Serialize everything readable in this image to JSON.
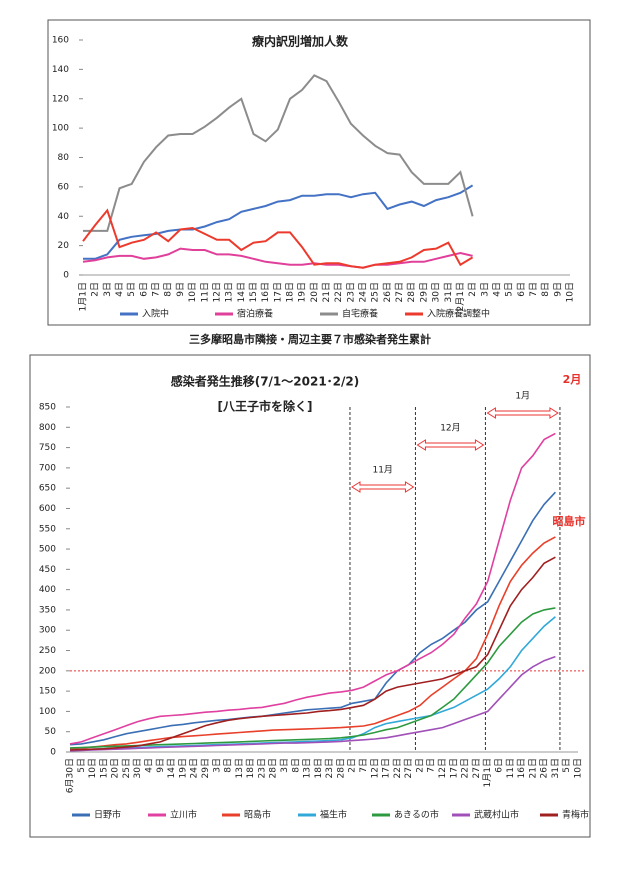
{
  "caption": "三多摩昭島市隣接・周辺主要７市感染者発生累計",
  "chart_data": [
    {
      "type": "line",
      "title": "療内訳別増加人数",
      "categories": [
        "1月1日",
        "2日",
        "3日",
        "4日",
        "5日",
        "6日",
        "7日",
        "8日",
        "9日",
        "10日",
        "11日",
        "12日",
        "13日",
        "14日",
        "15日",
        "16日",
        "17日",
        "18日",
        "19日",
        "20日",
        "21日",
        "22日",
        "23日",
        "24日",
        "25日",
        "26日",
        "27日",
        "28日",
        "29日",
        "30日",
        "31日",
        "2月1日",
        "2日",
        "3日",
        "4日",
        "5日",
        "6日",
        "7日",
        "8日",
        "9日",
        "10日"
      ],
      "ylim": [
        0,
        160
      ],
      "yticks": [
        0,
        20,
        40,
        60,
        80,
        100,
        120,
        140,
        160
      ],
      "grid": false,
      "legend": "bottom",
      "series": [
        {
          "name": "入院中",
          "color": "#4472c4",
          "values": [
            11,
            11,
            14,
            24,
            26,
            27,
            28,
            30,
            31,
            31,
            33,
            36,
            38,
            43,
            45,
            47,
            50,
            51,
            54,
            54,
            55,
            55,
            53,
            55,
            56,
            45,
            48,
            50,
            47,
            51,
            53,
            56,
            61,
            null,
            null,
            null,
            null,
            null,
            null,
            null,
            null
          ]
        },
        {
          "name": "宿泊療養",
          "color": "#e0409a",
          "values": [
            9,
            10,
            12,
            13,
            13,
            11,
            12,
            14,
            18,
            17,
            17,
            14,
            14,
            13,
            11,
            9,
            8,
            7,
            7,
            8,
            7,
            7,
            6,
            5,
            7,
            7,
            8,
            9,
            9,
            11,
            13,
            15,
            13,
            null,
            null,
            null,
            null,
            null,
            null,
            null,
            null
          ]
        },
        {
          "name": "自宅療養",
          "color": "#8c8c8c",
          "values": [
            30,
            30,
            30,
            59,
            62,
            77,
            87,
            95,
            96,
            96,
            101,
            107,
            114,
            120,
            96,
            91,
            99,
            120,
            126,
            136,
            132,
            118,
            103,
            95,
            88,
            83,
            82,
            70,
            62,
            62,
            62,
            70,
            40,
            null,
            null,
            null,
            null,
            null,
            null,
            null,
            null
          ]
        },
        {
          "name": "入院療養調整中",
          "color": "#ec3a2c",
          "values": [
            23,
            34,
            44,
            19,
            22,
            24,
            29,
            23,
            31,
            32,
            28,
            24,
            24,
            17,
            22,
            23,
            29,
            29,
            19,
            7,
            8,
            8,
            6,
            5,
            7,
            8,
            9,
            12,
            17,
            18,
            22,
            7,
            12,
            null,
            null,
            null,
            null,
            null,
            null,
            null,
            null
          ]
        }
      ]
    },
    {
      "type": "line",
      "title": "感染者発生推移(7/1～2021･2/2)",
      "subtitle": "[八王子市を除く]",
      "annotations": [
        "11月",
        "12月",
        "1月",
        "2月",
        "昭島市"
      ],
      "hline": 200,
      "categories": [
        "6月30日",
        "5日",
        "10日",
        "15日",
        "20日",
        "25日",
        "30日",
        "4日",
        "9日",
        "14日",
        "19日",
        "24日",
        "29日",
        "3日",
        "8日",
        "13日",
        "18日",
        "23日",
        "28日",
        "3日",
        "8日",
        "13日",
        "18日",
        "23日",
        "28日",
        "2日",
        "7日",
        "12日",
        "17日",
        "22日",
        "27日",
        "2日",
        "7日",
        "12日",
        "17日",
        "22日",
        "27日",
        "1月1日",
        "6日",
        "11日",
        "16日",
        "21日",
        "26日",
        "31日",
        "5日",
        "10日"
      ],
      "ylim": [
        0,
        850
      ],
      "yticks": [
        0,
        50,
        100,
        150,
        200,
        250,
        300,
        350,
        400,
        450,
        500,
        550,
        600,
        650,
        700,
        750,
        800,
        850
      ],
      "grid": false,
      "legend": "bottom",
      "series": [
        {
          "name": "日野市",
          "color": "#3a6fb5",
          "values": [
            18,
            20,
            25,
            30,
            38,
            45,
            50,
            55,
            60,
            65,
            68,
            72,
            75,
            78,
            80,
            83,
            86,
            88,
            92,
            96,
            100,
            104,
            106,
            108,
            110,
            120,
            125,
            130,
            170,
            200,
            215,
            245,
            265,
            280,
            300,
            320,
            350,
            370,
            420,
            470,
            520,
            570,
            610,
            640,
            null,
            null
          ]
        },
        {
          "name": "立川市",
          "color": "#e040a0",
          "values": [
            20,
            25,
            35,
            45,
            55,
            65,
            75,
            82,
            88,
            90,
            92,
            95,
            98,
            100,
            103,
            105,
            108,
            110,
            115,
            120,
            128,
            135,
            140,
            145,
            148,
            152,
            160,
            175,
            190,
            200,
            215,
            230,
            245,
            265,
            290,
            330,
            365,
            420,
            520,
            620,
            700,
            730,
            770,
            785,
            null,
            null
          ]
        },
        {
          "name": "昭島市",
          "color": "#e8402a",
          "values": [
            8,
            10,
            12,
            15,
            18,
            20,
            24,
            28,
            32,
            36,
            38,
            40,
            42,
            44,
            46,
            48,
            50,
            52,
            54,
            55,
            56,
            57,
            58,
            59,
            60,
            62,
            64,
            70,
            80,
            90,
            100,
            115,
            140,
            160,
            180,
            200,
            230,
            290,
            360,
            420,
            460,
            490,
            515,
            530,
            null,
            null
          ]
        },
        {
          "name": "福生市",
          "color": "#30a8d8",
          "values": [
            5,
            6,
            7,
            8,
            9,
            10,
            11,
            12,
            13,
            14,
            15,
            16,
            17,
            18,
            19,
            20,
            21,
            22,
            23,
            24,
            25,
            26,
            27,
            28,
            30,
            35,
            45,
            60,
            70,
            75,
            80,
            85,
            90,
            100,
            110,
            125,
            140,
            155,
            180,
            210,
            250,
            280,
            310,
            333,
            null,
            null
          ]
        },
        {
          "name": "あきるの市",
          "color": "#2e9a40",
          "values": [
            10,
            11,
            12,
            13,
            14,
            15,
            16,
            17,
            18,
            19,
            20,
            21,
            22,
            23,
            24,
            25,
            26,
            27,
            28,
            29,
            30,
            31,
            32,
            33,
            35,
            38,
            42,
            48,
            55,
            60,
            70,
            80,
            90,
            110,
            130,
            160,
            190,
            220,
            260,
            290,
            320,
            340,
            350,
            355,
            null,
            null
          ]
        },
        {
          "name": "武蔵村山市",
          "color": "#a050b8",
          "values": [
            3,
            4,
            5,
            6,
            7,
            8,
            9,
            10,
            11,
            12,
            13,
            14,
            15,
            16,
            17,
            18,
            19,
            20,
            21,
            22,
            22,
            23,
            24,
            25,
            26,
            28,
            30,
            32,
            35,
            40,
            45,
            50,
            55,
            60,
            70,
            80,
            90,
            100,
            130,
            160,
            190,
            210,
            225,
            235,
            null,
            null
          ]
        },
        {
          "name": "青梅市",
          "color": "#a02020",
          "values": [
            5,
            6,
            7,
            8,
            10,
            12,
            15,
            20,
            25,
            35,
            45,
            55,
            65,
            72,
            78,
            82,
            85,
            88,
            90,
            92,
            94,
            96,
            100,
            102,
            105,
            110,
            115,
            130,
            150,
            160,
            165,
            170,
            175,
            180,
            190,
            200,
            210,
            240,
            300,
            360,
            400,
            430,
            465,
            480,
            null,
            null
          ]
        }
      ]
    }
  ]
}
